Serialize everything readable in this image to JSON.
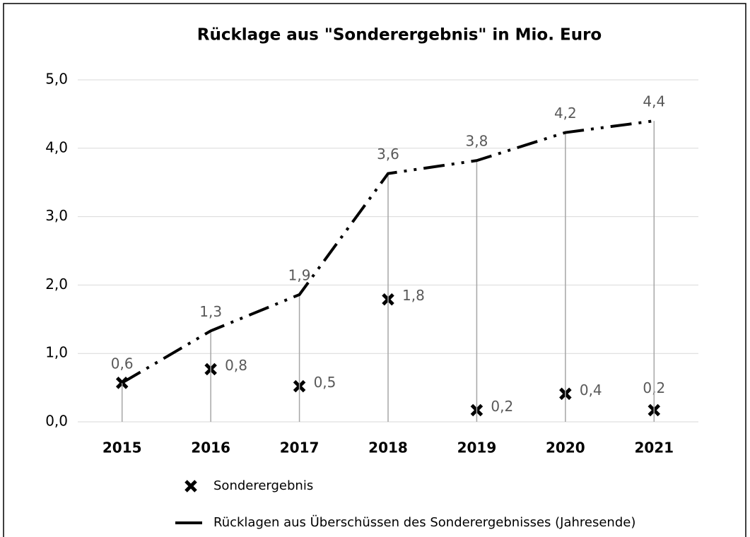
{
  "chart_data": {
    "type": "line",
    "title": "Rücklage aus \"Sonderergebnis\" in Mio. Euro",
    "categories": [
      "2015",
      "2016",
      "2017",
      "2018",
      "2019",
      "2020",
      "2021"
    ],
    "series": [
      {
        "name": "Sonderergebnis",
        "type": "scatter",
        "color": "#000000",
        "values": [
          0.57,
          0.77,
          0.52,
          1.79,
          0.17,
          0.41,
          0.17
        ],
        "value_labels": [
          null,
          "0,8",
          "0,5",
          "1,8",
          "0,2",
          "0,4",
          "0,2"
        ]
      },
      {
        "name": "Rücklagen aus Überschüssen des Sonderergebnisses (Jahresende)",
        "type": "line",
        "color": "#000000",
        "values": [
          0.57,
          1.33,
          1.86,
          3.63,
          3.82,
          4.23,
          4.4
        ],
        "value_labels": [
          "0,6",
          "1,3",
          "1,9",
          "3,6",
          "3,8",
          "4,2",
          "4,4"
        ]
      }
    ],
    "ylim": [
      0,
      5
    ],
    "yticks": [
      {
        "value": 0,
        "label": "0,0"
      },
      {
        "value": 1,
        "label": "1,0"
      },
      {
        "value": 2,
        "label": "2,0"
      },
      {
        "value": 3,
        "label": "3,0"
      },
      {
        "value": 4,
        "label": "4,0"
      },
      {
        "value": 5,
        "label": "5,0"
      }
    ],
    "grid": true,
    "legend": "bottom"
  }
}
